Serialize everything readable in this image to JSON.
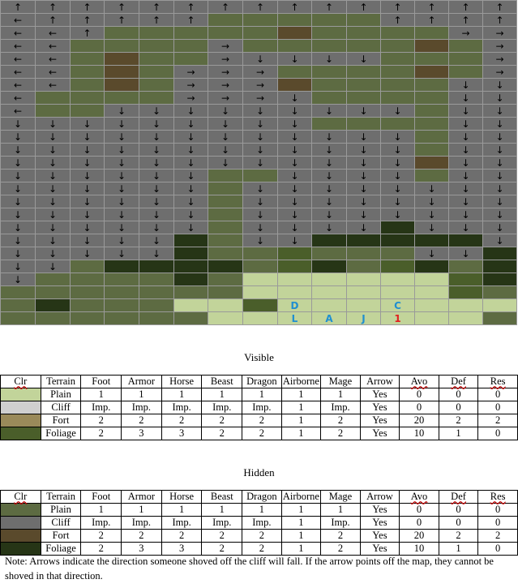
{
  "map": {
    "colors": {
      "P": "#c2d49a",
      "L": "#5d6b42",
      "C": "#6e6e6e",
      "F": "#5a4a2c",
      "D": "#263516",
      "G": "#4a5e2a"
    },
    "arrows": {
      "U": "↑",
      "D": "↓",
      "L": "←",
      "R": "→"
    },
    "rows": [
      "C:U C:U C:U C:U C:U C:U C:U C:U C:U C:U C:U C:U C:U C:U C:U",
      "C:L C:U C:U C:U C:U C:U L L L L L C:U C:U C:U C:U",
      "C:L C:L C:U L L L L L F L L L L C:R C:R",
      "C:L C:L L L L L C:R L L L L L F L C:R",
      "C:L C:L L F L L C:R C:D C:D C:D C:D L L L C:R",
      "C:L C:L L F L C:R C:R C:R L L L L F L C:R",
      "C:L C:L L F L C:R C:R C:R F L L L L C:D C:D",
      "C:L L L L L C:R C:R C:R C:D L L L L C:D C:D",
      "C:L L L C:D C:D C:D C:D C:D C:D C:D C:D C:D L C:D C:D",
      "C:D C:D C:D C:D C:D C:D C:D C:D C:D L L L L C:D C:D",
      "C:D C:D C:D C:D C:D C:D C:D C:D C:D C:D C:D C:D L C:D C:D",
      "C:D C:D C:D C:D C:D C:D C:D C:D C:D C:D C:D C:D L C:D C:D",
      "C:D C:D C:D C:D C:D C:D C:D C:D C:D C:D C:D C:D F C:D C:D",
      "C:D C:D C:D C:D C:D C:D L L C:D C:D C:D C:D L C:D C:D",
      "C:D C:D C:D C:D C:D C:D L C:D C:D C:D C:D C:D C:D C:D C:D",
      "C:D C:D C:D C:D C:D C:D L C:D C:D C:D C:D C:D C:D C:D C:D",
      "C:D C:D C:D C:D C:D C:D L C:D C:D C:D C:D C:D C:D C:D C:D",
      "C:D C:D C:D C:D C:D C:D L C:D C:D C:D C:D D C:D C:D C:D",
      "C:D C:D C:D C:D C:D D L C:D C:D D D D D D C:D",
      "C:D C:D C:D C:D C:D D L L G L L L C:D C:D D",
      "C:D C:D L D D D D L G D L G D L D",
      "C:D L L L L D L P P P P P P G D",
      "L L L L L L L P P P P P P G L",
      "L D L L L P P G P P P P P P P",
      "L L L L L L P P P P P P P P L"
    ],
    "markers": [
      {
        "row": 23,
        "col": 8,
        "text": "D",
        "color": "#1f8fd0"
      },
      {
        "row": 23,
        "col": 11,
        "text": "C",
        "color": "#1f8fd0"
      },
      {
        "row": 24,
        "col": 8,
        "text": "L",
        "color": "#1f8fd0"
      },
      {
        "row": 24,
        "col": 9,
        "text": "A",
        "color": "#1f8fd0"
      },
      {
        "row": 24,
        "col": 10,
        "text": "J",
        "color": "#1f8fd0"
      },
      {
        "row": 24,
        "col": 11,
        "text": "1",
        "color": "#e02020"
      }
    ]
  },
  "visible": {
    "caption": "Visible",
    "headers": [
      "Clr",
      "Terrain",
      "Foot",
      "Armor",
      "Horse",
      "Beast",
      "Dragon",
      "Airborne",
      "Mage",
      "Arrow",
      "Avo",
      "Def",
      "Res"
    ],
    "rows": [
      {
        "color": "#c2d49a",
        "cells": [
          "Plain",
          "1",
          "1",
          "1",
          "1",
          "1",
          "1",
          "1",
          "Yes",
          "0",
          "0",
          "0"
        ]
      },
      {
        "color": "#cfcfcf",
        "cells": [
          "Cliff",
          "Imp.",
          "Imp.",
          "Imp.",
          "Imp.",
          "Imp.",
          "1",
          "Imp.",
          "Yes",
          "0",
          "0",
          "0"
        ]
      },
      {
        "color": "#9a8a5a",
        "cells": [
          "Fort",
          "2",
          "2",
          "2",
          "2",
          "2",
          "1",
          "2",
          "Yes",
          "20",
          "2",
          "2"
        ]
      },
      {
        "color": "#4a5e2a",
        "cells": [
          "Foliage",
          "2",
          "3",
          "3",
          "2",
          "2",
          "1",
          "2",
          "Yes",
          "10",
          "1",
          "0"
        ]
      }
    ]
  },
  "hidden": {
    "caption": "Hidden",
    "headers": [
      "Clr",
      "Terrain",
      "Foot",
      "Armor",
      "Horse",
      "Beast",
      "Dragon",
      "Airborne",
      "Mage",
      "Arrow",
      "Avo",
      "Def",
      "Res"
    ],
    "rows": [
      {
        "color": "#5d6b42",
        "cells": [
          "Plain",
          "1",
          "1",
          "1",
          "1",
          "1",
          "1",
          "1",
          "Yes",
          "0",
          "0",
          "0"
        ]
      },
      {
        "color": "#6e6e6e",
        "cells": [
          "Cliff",
          "Imp.",
          "Imp.",
          "Imp.",
          "Imp.",
          "Imp.",
          "1",
          "Imp.",
          "Yes",
          "0",
          "0",
          "0"
        ]
      },
      {
        "color": "#5a4a2c",
        "cells": [
          "Fort",
          "2",
          "2",
          "2",
          "2",
          "2",
          "1",
          "2",
          "Yes",
          "20",
          "2",
          "2"
        ]
      },
      {
        "color": "#263516",
        "cells": [
          "Foliage",
          "2",
          "3",
          "3",
          "2",
          "2",
          "1",
          "2",
          "Yes",
          "10",
          "1",
          "0"
        ]
      }
    ]
  },
  "note": "Note: Arrows indicate the direction someone shoved off the cliff will fall. If the arrow points off the map, they cannot be shoved in that direction."
}
